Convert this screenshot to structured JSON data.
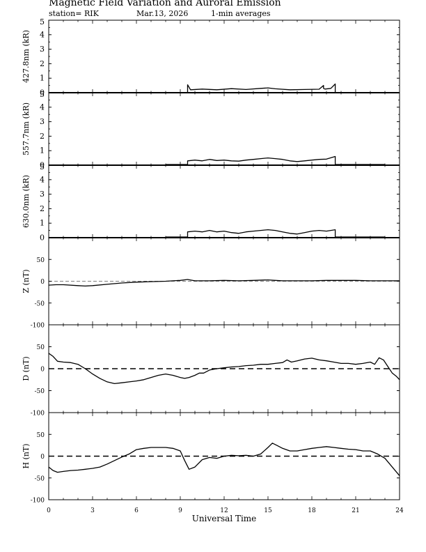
{
  "header": {
    "title": "Magnetic Field Variation and Auroral Emission",
    "station": "station= RIK",
    "date": "Mar.13, 2026",
    "averaging": "1-min averages"
  },
  "chart_data": {
    "type": "line",
    "xlabel": "Universal Time",
    "xlim": [
      0,
      24
    ],
    "xticks": [
      0,
      3,
      6,
      9,
      12,
      15,
      18,
      21,
      24
    ],
    "panels": [
      {
        "id": "427",
        "ylabel": "427.8nm (kR)",
        "ylim": [
          0,
          5
        ],
        "yticks": [
          0,
          1,
          2,
          3,
          4,
          5
        ],
        "zero_line": "none",
        "x": [
          9.5,
          9.5,
          9.7,
          10.5,
          11.5,
          12.5,
          13.5,
          14.5,
          15.0,
          15.5,
          16.5,
          17.5,
          18.5,
          18.8,
          18.8,
          18.9,
          19.3,
          19.6,
          19.6
        ],
        "y": [
          0.0,
          0.55,
          0.2,
          0.25,
          0.2,
          0.28,
          0.22,
          0.3,
          0.33,
          0.27,
          0.2,
          0.22,
          0.24,
          0.5,
          0.3,
          0.25,
          0.3,
          0.6,
          0.0
        ]
      },
      {
        "id": "557",
        "ylabel": "557.7nm (kR)",
        "ylim": [
          0,
          5
        ],
        "yticks": [
          0,
          1,
          2,
          3,
          4,
          5
        ],
        "zero_line": "none",
        "x": [
          8.0,
          9.5,
          9.5,
          10.0,
          10.5,
          11.0,
          11.5,
          12.0,
          12.5,
          13.0,
          13.5,
          14.0,
          14.5,
          15.0,
          15.5,
          16.0,
          16.5,
          17.0,
          17.5,
          18.0,
          18.5,
          19.0,
          19.6,
          19.6,
          23.0
        ],
        "y": [
          0.05,
          0.05,
          0.3,
          0.35,
          0.3,
          0.4,
          0.32,
          0.35,
          0.3,
          0.28,
          0.35,
          0.4,
          0.45,
          0.5,
          0.45,
          0.4,
          0.3,
          0.25,
          0.3,
          0.35,
          0.4,
          0.42,
          0.6,
          0.05,
          0.05
        ]
      },
      {
        "id": "630",
        "ylabel": "630.0nm (kR)",
        "ylim": [
          0,
          5
        ],
        "yticks": [
          0,
          1,
          2,
          3,
          4,
          5
        ],
        "zero_line": "none",
        "x": [
          8.0,
          9.5,
          9.5,
          10.0,
          10.5,
          11.0,
          11.5,
          12.0,
          12.5,
          13.0,
          13.5,
          14.0,
          14.5,
          15.0,
          15.5,
          16.0,
          16.5,
          17.0,
          17.5,
          18.0,
          18.5,
          19.0,
          19.6,
          19.6,
          23.0
        ],
        "y": [
          0.05,
          0.05,
          0.4,
          0.45,
          0.4,
          0.5,
          0.4,
          0.45,
          0.35,
          0.3,
          0.4,
          0.45,
          0.5,
          0.55,
          0.5,
          0.4,
          0.3,
          0.25,
          0.35,
          0.45,
          0.5,
          0.45,
          0.55,
          0.05,
          0.05
        ]
      },
      {
        "id": "Z",
        "ylabel": "Z (nT)",
        "ylim": [
          -100,
          100
        ],
        "yticks": [
          -100,
          -50,
          0,
          50
        ],
        "zero_line": "thin",
        "x": [
          0,
          0.5,
          1,
          2,
          2.5,
          3,
          4,
          5,
          6,
          7,
          8,
          8.5,
          9,
          9.5,
          10,
          11,
          12,
          13,
          14,
          15,
          15.5,
          16,
          17,
          18,
          19,
          20,
          21,
          22,
          23,
          24
        ],
        "y": [
          -9,
          -8,
          -8,
          -10,
          -11,
          -10,
          -7,
          -4,
          -2,
          -1,
          0,
          1,
          2,
          4,
          1,
          1,
          2,
          1,
          2,
          3,
          2,
          1,
          1,
          1,
          2,
          2,
          2,
          1,
          1,
          1
        ]
      },
      {
        "id": "D",
        "ylabel": "D (nT)",
        "ylim": [
          -100,
          100
        ],
        "yticks": [
          -100,
          -50,
          0,
          50
        ],
        "zero_line": "thick",
        "x": [
          0,
          0.3,
          0.6,
          1.0,
          1.5,
          2.0,
          2.5,
          3.0,
          3.5,
          4.0,
          4.5,
          5.0,
          5.5,
          6.0,
          6.5,
          7.0,
          7.5,
          8.0,
          8.5,
          9.0,
          9.3,
          9.6,
          10.0,
          10.3,
          10.6,
          11.0,
          11.5,
          12.0,
          12.5,
          13.0,
          13.5,
          14.0,
          14.5,
          15.0,
          15.5,
          16.0,
          16.3,
          16.6,
          17.0,
          17.5,
          18.0,
          18.5,
          19.0,
          19.5,
          20.0,
          20.5,
          21.0,
          21.5,
          22.0,
          22.3,
          22.6,
          22.9,
          23.2,
          23.5,
          23.8,
          24.0
        ],
        "y": [
          35,
          28,
          17,
          15,
          14,
          10,
          0,
          -12,
          -22,
          -30,
          -34,
          -32,
          -30,
          -28,
          -25,
          -20,
          -15,
          -12,
          -15,
          -20,
          -22,
          -20,
          -15,
          -10,
          -10,
          -3,
          0,
          2,
          4,
          5,
          7,
          8,
          10,
          10,
          12,
          14,
          20,
          15,
          18,
          22,
          24,
          20,
          18,
          15,
          12,
          12,
          10,
          12,
          15,
          10,
          25,
          20,
          5,
          -10,
          -18,
          -25
        ]
      },
      {
        "id": "H",
        "ylabel": "H (nT)",
        "ylim": [
          -100,
          100
        ],
        "yticks": [
          -100,
          -50,
          0,
          50
        ],
        "zero_line": "thick",
        "x": [
          0,
          0.3,
          0.6,
          1.0,
          1.5,
          2.0,
          2.5,
          3.0,
          3.5,
          4.0,
          4.5,
          5.0,
          5.5,
          6.0,
          6.5,
          7.0,
          7.5,
          8.0,
          8.5,
          9.0,
          9.3,
          9.6,
          10.0,
          10.5,
          11.0,
          11.5,
          12.0,
          12.5,
          13.0,
          13.5,
          14.0,
          14.5,
          15.0,
          15.3,
          15.6,
          16.0,
          16.5,
          17.0,
          17.5,
          18.0,
          18.5,
          19.0,
          19.5,
          20.0,
          20.5,
          21.0,
          21.5,
          22.0,
          22.5,
          23.0,
          23.5,
          24.0
        ],
        "y": [
          -25,
          -33,
          -37,
          -35,
          -33,
          -32,
          -30,
          -28,
          -25,
          -18,
          -10,
          -2,
          5,
          15,
          18,
          20,
          20,
          20,
          18,
          12,
          -10,
          -30,
          -25,
          -8,
          -3,
          -5,
          0,
          2,
          1,
          2,
          0,
          5,
          20,
          30,
          25,
          18,
          12,
          12,
          15,
          18,
          20,
          22,
          20,
          18,
          16,
          15,
          12,
          12,
          5,
          -5,
          -25,
          -45
        ]
      }
    ]
  }
}
